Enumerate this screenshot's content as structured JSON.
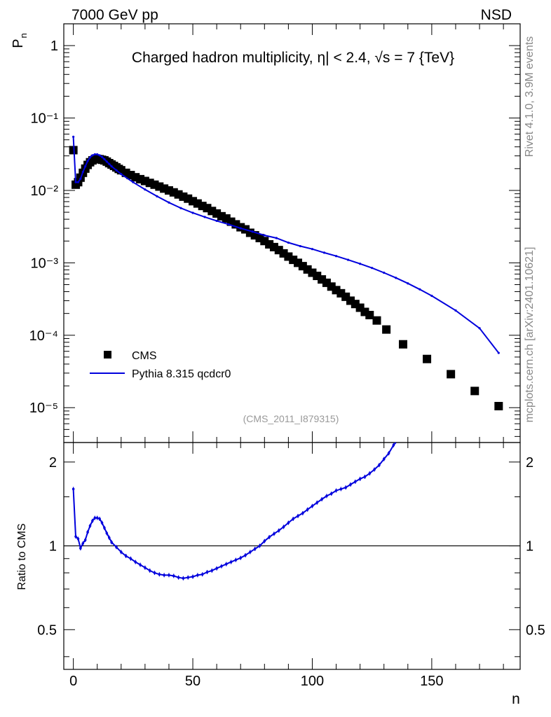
{
  "chart_data": {
    "type": "scatter",
    "header_left": "7000 GeV pp",
    "header_right": "NSD",
    "title": "Charged hadron multiplicity, η| < 2.4, √s = 7 {TeV}",
    "ylabel_main": "P_n",
    "ylabel_ratio": "Ratio to CMS",
    "xlabel": "n",
    "analysis_label": "(CMS_2011_I879315)",
    "side_top": "Rivet 4.1.0,  3.9M events",
    "side_bottom": "mcplots.cern.ch [arXiv:2401.10621]",
    "xlim": [
      -4,
      187
    ],
    "ylim_main": [
      3.3e-06,
      2.0
    ],
    "ylim_ratio": [
      0.36,
      2.35
    ],
    "y_scale_main": "log",
    "y_scale_ratio": "log",
    "legend_position": "bottom-left",
    "x_ticks": [
      0,
      50,
      100,
      150
    ],
    "y_ticks_main": [
      {
        "value": 1,
        "label": "1"
      },
      {
        "value": 0.1,
        "label": "10⁻¹"
      },
      {
        "value": 0.01,
        "label": "10⁻²"
      },
      {
        "value": 0.001,
        "label": "10⁻³"
      },
      {
        "value": 0.0001,
        "label": "10⁻⁴"
      },
      {
        "value": 1e-05,
        "label": "10⁻⁵"
      }
    ],
    "y_ticks_ratio": [
      {
        "value": 2,
        "label": "2"
      },
      {
        "value": 1,
        "label": "1"
      },
      {
        "value": 0.5,
        "label": "0.5"
      }
    ],
    "series": [
      {
        "name": "CMS",
        "kind": "data-markers",
        "color": "#000000",
        "x": [
          0,
          1,
          2,
          3,
          4,
          5,
          6,
          7,
          8,
          9,
          10,
          11,
          12,
          13,
          14,
          15,
          16,
          17,
          18,
          19,
          20,
          22,
          24,
          26,
          28,
          30,
          32,
          34,
          36,
          38,
          40,
          42,
          44,
          46,
          48,
          50,
          52,
          54,
          56,
          58,
          60,
          62,
          64,
          66,
          68,
          70,
          72,
          74,
          76,
          78,
          80,
          82,
          84,
          86,
          88,
          90,
          92,
          94,
          96,
          98,
          100,
          102,
          104,
          106,
          108,
          110,
          112,
          114,
          116,
          118,
          120,
          122,
          124,
          127,
          131,
          138,
          148,
          158,
          168,
          178
        ],
        "y": [
          0.036,
          0.012,
          0.013,
          0.015,
          0.0175,
          0.02,
          0.0225,
          0.0245,
          0.026,
          0.027,
          0.0272,
          0.027,
          0.0265,
          0.026,
          0.025,
          0.0238,
          0.0228,
          0.0218,
          0.0208,
          0.0198,
          0.019,
          0.0175,
          0.0163,
          0.0152,
          0.0143,
          0.0135,
          0.0127,
          0.012,
          0.0113,
          0.0106,
          0.01,
          0.0094,
          0.0088,
          0.0082,
          0.0077,
          0.0071,
          0.0066,
          0.0061,
          0.0057,
          0.0052,
          0.0048,
          0.0044,
          0.0041,
          0.0037,
          0.0034,
          0.0031,
          0.0029,
          0.0026,
          0.0024,
          0.0022,
          0.002,
          0.0018,
          0.00165,
          0.0015,
          0.00135,
          0.00122,
          0.0011,
          0.001,
          0.0009,
          0.00081,
          0.00073,
          0.00066,
          0.00059,
          0.00053,
          0.00047,
          0.00042,
          0.00038,
          0.00034,
          0.0003,
          0.00027,
          0.00024,
          0.00021,
          0.00019,
          0.00016,
          0.00012,
          7.5e-05,
          4.7e-05,
          2.9e-05,
          1.7e-05,
          1.05e-05
        ]
      },
      {
        "name": "Pythia 8.315 qcdcr0",
        "kind": "mc-line",
        "color": "#0000dd",
        "x": [
          0,
          1,
          2,
          3,
          4,
          5,
          6,
          7,
          8,
          9,
          10,
          11,
          12,
          13,
          14,
          15,
          16,
          18,
          20,
          25,
          30,
          35,
          40,
          45,
          50,
          55,
          60,
          65,
          70,
          75,
          80,
          85,
          90,
          95,
          100,
          105,
          110,
          115,
          120,
          125,
          130,
          135,
          140,
          145,
          150,
          160,
          170,
          178
        ],
        "y": [
          0.055,
          0.013,
          0.013,
          0.0145,
          0.018,
          0.0215,
          0.0255,
          0.0285,
          0.0305,
          0.0315,
          0.0315,
          0.0305,
          0.029,
          0.027,
          0.025,
          0.0232,
          0.0215,
          0.019,
          0.0168,
          0.013,
          0.0103,
          0.0083,
          0.0068,
          0.0057,
          0.0049,
          0.0043,
          0.0038,
          0.0034,
          0.003,
          0.0027,
          0.0024,
          0.0022,
          0.0019,
          0.0017,
          0.00155,
          0.00138,
          0.00124,
          0.0011,
          0.00097,
          0.00085,
          0.00073,
          0.00062,
          0.00052,
          0.00043,
          0.00035,
          0.00022,
          0.000125,
          5.7e-05
        ]
      }
    ],
    "ratio": {
      "name": "Pythia 8.315 qcdcr0 / CMS",
      "color": "#0000dd",
      "reference_line": 1.0,
      "x": [
        0,
        1,
        2,
        3,
        4,
        5,
        6,
        7,
        8,
        9,
        10,
        11,
        12,
        13,
        14,
        15,
        16,
        18,
        20,
        22,
        24,
        26,
        28,
        30,
        32,
        34,
        36,
        38,
        40,
        42,
        44,
        46,
        48,
        50,
        52,
        54,
        56,
        58,
        60,
        62,
        64,
        66,
        68,
        70,
        72,
        74,
        76,
        78,
        80,
        82,
        84,
        86,
        88,
        90,
        92,
        94,
        96,
        98,
        100,
        102,
        104,
        106,
        108,
        110,
        112,
        114,
        116,
        118,
        120,
        122,
        124,
        126,
        128,
        130,
        132,
        134,
        135
      ],
      "y": [
        1.6,
        1.08,
        1.06,
        0.98,
        1.02,
        1.05,
        1.12,
        1.18,
        1.23,
        1.26,
        1.26,
        1.25,
        1.21,
        1.16,
        1.11,
        1.07,
        1.03,
        0.99,
        0.95,
        0.92,
        0.9,
        0.875,
        0.855,
        0.835,
        0.815,
        0.8,
        0.79,
        0.785,
        0.785,
        0.78,
        0.77,
        0.765,
        0.77,
        0.775,
        0.785,
        0.79,
        0.805,
        0.815,
        0.83,
        0.845,
        0.86,
        0.875,
        0.89,
        0.905,
        0.925,
        0.95,
        0.975,
        1.0,
        1.04,
        1.075,
        1.105,
        1.135,
        1.17,
        1.21,
        1.25,
        1.28,
        1.31,
        1.35,
        1.39,
        1.43,
        1.47,
        1.51,
        1.54,
        1.58,
        1.6,
        1.62,
        1.66,
        1.7,
        1.74,
        1.77,
        1.82,
        1.88,
        1.95,
        2.05,
        2.15,
        2.3,
        2.4
      ]
    }
  }
}
